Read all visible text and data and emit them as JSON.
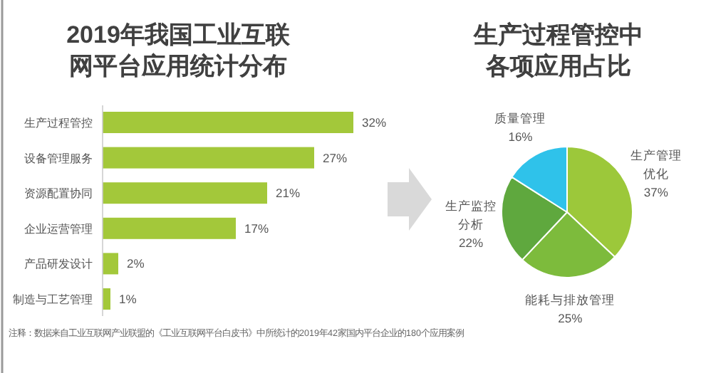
{
  "chart_data": [
    {
      "type": "bar",
      "orientation": "horizontal",
      "title": "2019年我国工业互联网平台应用统计分布",
      "categories": [
        "生产过程管控",
        "设备管理服务",
        "资源配置协同",
        "企业运营管理",
        "产品研发设计",
        "制造与工艺管理"
      ],
      "values": [
        32,
        27,
        21,
        17,
        2,
        1
      ],
      "value_labels": [
        "32%",
        "27%",
        "21%",
        "17%",
        "2%",
        "1%"
      ],
      "color": "#a3c83a",
      "annotations": [
        "注释：数据来自工业互联网产业联盟的《工业互联网平台白皮书》中所统计的2019年42家国内平台企业的180个应用案例"
      ]
    },
    {
      "type": "pie",
      "title": "生产过程管控中各项应用占比",
      "categories": [
        "生产管理优化",
        "能耗与排放管理",
        "生产监控分析",
        "质量管理"
      ],
      "values": [
        37,
        25,
        22,
        16
      ],
      "value_labels": [
        "37%",
        "25%",
        "22%",
        "16%"
      ],
      "colors": [
        "#9cc83a",
        "#7dbb3c",
        "#5fa83e",
        "#2fc2ea"
      ]
    }
  ]
}
